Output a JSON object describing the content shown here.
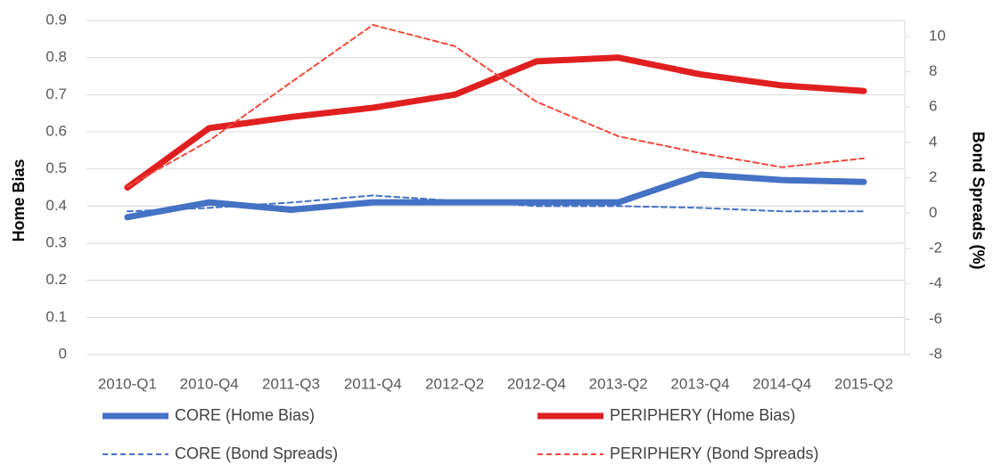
{
  "chart_data": {
    "type": "line",
    "categories": [
      "2010-Q1",
      "2010-Q4",
      "2011-Q3",
      "2011-Q4",
      "2012-Q2",
      "2012-Q4",
      "2013-Q2",
      "2013-Q4",
      "2014-Q4",
      "2015-Q2"
    ],
    "y_label": "Home Bias",
    "y2_label": "Bond Spreads (%)",
    "ylim": [
      0,
      0.9
    ],
    "yticks": [
      0,
      0.1,
      0.2,
      0.3,
      0.4,
      0.5,
      0.6,
      0.7,
      0.8,
      0.9
    ],
    "y2lim": [
      -8,
      10.9
    ],
    "y2ticks": [
      -8,
      -6,
      -4,
      -2,
      0,
      2,
      4,
      6,
      8,
      10
    ],
    "grid": true,
    "legend": "bottom",
    "series": [
      {
        "name": "CORE (Home Bias)",
        "color": "#4472c4",
        "style": "solid",
        "values": [
          0.37,
          0.41,
          0.39,
          0.41,
          0.41,
          0.41,
          0.41,
          0.485,
          0.47,
          0.465
        ]
      },
      {
        "name": "PERIPHERY (Home Bias)",
        "color": "#e02020",
        "style": "solid",
        "values": [
          0.45,
          0.61,
          0.64,
          0.665,
          0.7,
          0.79,
          0.8,
          0.755,
          0.725,
          0.71
        ]
      },
      {
        "name": "CORE (Bond Spreads)",
        "color": "#4472c4",
        "style": "dashed",
        "axis": "y2",
        "values": [
          0.1,
          0.3,
          0.6,
          1.0,
          0.7,
          0.4,
          0.4,
          0.3,
          0.1,
          0.1
        ]
      },
      {
        "name": "PERIPHERY (Bond Spreads)",
        "color": "#f04a3a",
        "style": "dashed",
        "axis": "y2",
        "values": [
          1.5,
          4.1,
          7.4,
          10.65,
          9.45,
          6.3,
          4.35,
          3.4,
          2.6,
          3.1
        ]
      }
    ]
  }
}
